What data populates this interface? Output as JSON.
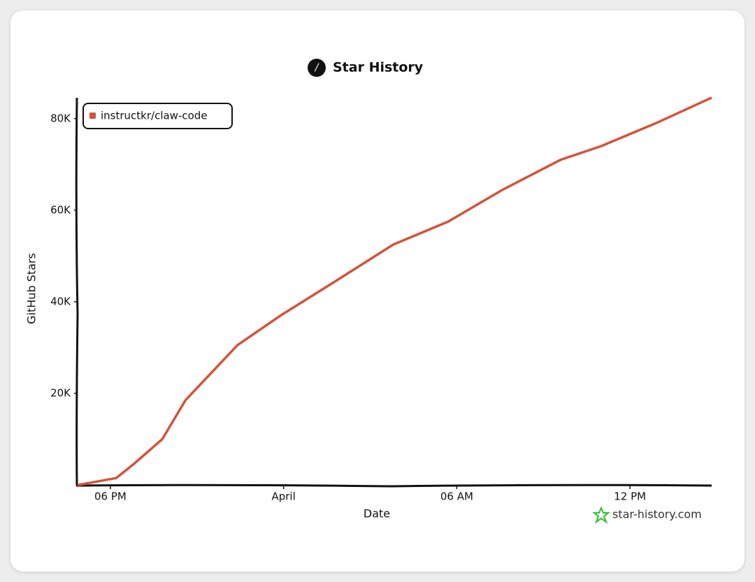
{
  "chart_data": {
    "type": "line",
    "title": "Star History",
    "x_label": "Date",
    "y_label": "GitHub Stars",
    "watermark": "star-history.com",
    "xlim": [
      -7.16,
      14.83
    ],
    "xticks": [
      {
        "value": -6,
        "label": "06 PM"
      },
      {
        "value": 0,
        "label": "April"
      },
      {
        "value": 6,
        "label": "06 AM"
      },
      {
        "value": 12,
        "label": "12 PM"
      }
    ],
    "ylim": [
      0,
      85000
    ],
    "yticks": [
      {
        "value": 20000,
        "label": "20K"
      },
      {
        "value": 40000,
        "label": "40K"
      },
      {
        "value": 60000,
        "label": "60K"
      },
      {
        "value": 80000,
        "label": "80K"
      }
    ],
    "grid": false,
    "legend": "top-left",
    "x": [
      -7.1,
      -5.8,
      -5.2,
      -4.2,
      -3.4,
      -2.5,
      -1.6,
      -0.1,
      1.8,
      3.8,
      5.7,
      7.6,
      9.6,
      11.0,
      12.9,
      14.8
    ],
    "series": [
      {
        "name": "instructkr/claw-code",
        "color": "#d4533a",
        "values": [
          0,
          1500,
          4500,
          10000,
          18500,
          24500,
          30500,
          37000,
          44500,
          52500,
          57500,
          64500,
          71000,
          74000,
          79000,
          84500
        ]
      }
    ]
  }
}
